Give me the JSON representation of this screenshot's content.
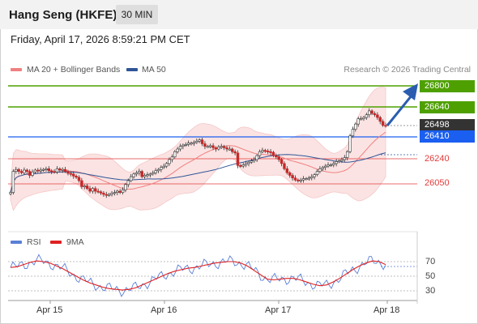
{
  "header": {
    "title": "Hang Seng (HKFE)",
    "timeframe": "30 MIN"
  },
  "datetime": "Friday, April 17, 2026 8:59:21 PM CET",
  "legend": {
    "ma20": "MA 20 + Bollinger Bands",
    "ma50": "MA 50",
    "credit": "Research © 2026 Trading Central",
    "ma20_color": "#f08080",
    "ma50_color": "#2f5597"
  },
  "price_labels": {
    "r2": "26800",
    "r1": "26640",
    "last": "26498",
    "pivot": "26410",
    "s1": "26240",
    "s2": "26050"
  },
  "colors": {
    "resistance": "#4ea000",
    "pivot": "#1a5ff0",
    "support": "#e23b3b",
    "last": "#333333",
    "arrow": "#2a5db0",
    "rsi": "#5b7fd6",
    "rsi_ma": "#e02020"
  },
  "rsi_panel": {
    "rsi_label": "RSI",
    "ma_label": "9MA",
    "levels": [
      "70",
      "50",
      "30"
    ]
  },
  "x_axis": [
    "Apr 15",
    "Apr 16",
    "Apr 17",
    "Apr 18"
  ],
  "chart_data": {
    "type": "candlestick",
    "title": "Hang Seng (HKFE)",
    "timeframe": "30 MIN",
    "key_levels": {
      "resistance": [
        26800,
        26640
      ],
      "pivot": 26410,
      "last": 26498,
      "support": [
        26240,
        26050
      ]
    },
    "close_path": [
      25990,
      26150,
      26165,
      26150,
      26140,
      26160,
      26150,
      26120,
      26145,
      26160,
      26155,
      26160,
      26165,
      26170,
      26155,
      26150,
      26145,
      26170,
      26160,
      26165,
      26150,
      26135,
      26130,
      26115,
      26105,
      26080,
      26035,
      26040,
      26020,
      26000,
      26020,
      26000,
      25995,
      25985,
      25975,
      25970,
      25975,
      25985,
      25990,
      26000,
      25990,
      26010,
      26050,
      26080,
      26110,
      26130,
      26140,
      26150,
      26110,
      26120,
      26125,
      26130,
      26140,
      26155,
      26165,
      26180,
      26190,
      26210,
      26240,
      26260,
      26300,
      26320,
      26340,
      26350,
      26355,
      26365,
      26365,
      26370,
      26380,
      26390,
      26360,
      26340,
      26340,
      26345,
      26330,
      26320,
      26335,
      26340,
      26330,
      26320,
      26320,
      26300,
      26290,
      26195,
      26190,
      26200,
      26210,
      26220,
      26230,
      26240,
      26270,
      26300,
      26310,
      26305,
      26300,
      26295,
      26270,
      26260,
      26240,
      26210,
      26170,
      26140,
      26120,
      26100,
      26085,
      26080,
      26085,
      26095,
      26095,
      26100,
      26110,
      26125,
      26150,
      26170,
      26180,
      26190,
      26200,
      26200,
      26210,
      26225,
      26230,
      26240,
      26255,
      26300,
      26420,
      26470,
      26510,
      26550,
      26550,
      26560,
      26580,
      26610,
      26590,
      26580,
      26560,
      26530,
      26500,
      26498
    ],
    "rsi_ma_path": [
      62,
      63,
      66,
      69,
      71,
      70,
      68,
      64,
      60,
      55,
      50,
      45,
      41,
      38,
      35,
      33,
      32,
      31,
      32,
      34,
      38,
      42,
      46,
      50,
      54,
      57,
      59,
      61,
      62,
      64,
      66,
      68,
      69,
      70,
      70,
      68,
      64,
      58,
      52,
      46,
      45,
      46,
      47,
      47,
      45,
      42,
      39,
      37,
      38,
      42,
      47,
      53,
      59,
      64,
      68,
      71,
      70,
      66
    ]
  }
}
